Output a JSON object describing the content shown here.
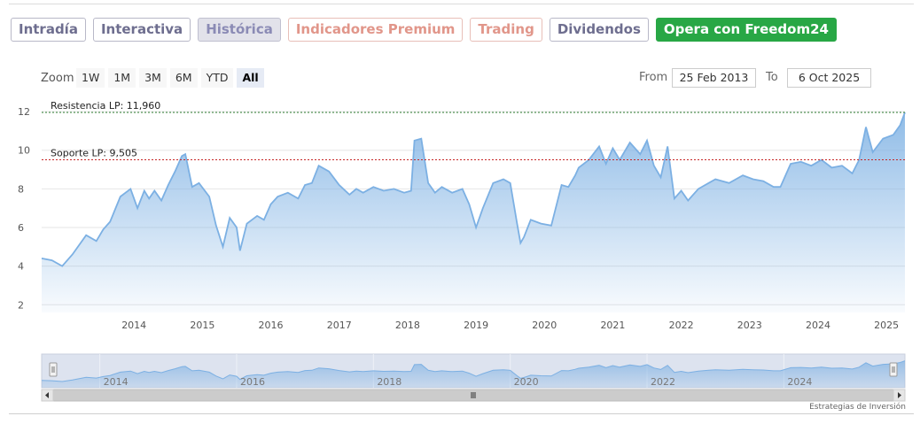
{
  "tabs": [
    {
      "label": "Intradía",
      "style": "default"
    },
    {
      "label": "Interactiva",
      "style": "default"
    },
    {
      "label": "Histórica",
      "style": "active"
    },
    {
      "label": "Indicadores Premium",
      "style": "orange"
    },
    {
      "label": "Trading",
      "style": "orange"
    },
    {
      "label": "Dividendos",
      "style": "default"
    },
    {
      "label": "Opera con Freedom24",
      "style": "green"
    }
  ],
  "zoom": {
    "label": "Zoom",
    "options": [
      "1W",
      "1M",
      "3M",
      "6M",
      "YTD",
      "All"
    ],
    "selected": "All"
  },
  "range": {
    "from_label": "From",
    "from_value": "25 Feb 2013",
    "to_label": "To",
    "to_value": "6 Oct 2025"
  },
  "credit": "Estrategias de Inversión",
  "colors": {
    "line": "#7cb0e3",
    "resistance": "#2e7d32",
    "support": "#c62828"
  },
  "chart_data": {
    "type": "area",
    "title": "",
    "xlabel": "",
    "ylabel": "",
    "x_range": [
      2013.15,
      2025.77
    ],
    "ylim": [
      1.6,
      12.6
    ],
    "yticks": [
      2,
      4,
      6,
      8,
      10,
      12
    ],
    "xticks": [
      2014,
      2015,
      2016,
      2017,
      2018,
      2019,
      2020,
      2021,
      2022,
      2023,
      2024,
      2025
    ],
    "grid": true,
    "series": [
      {
        "x": [
          2013.15,
          2013.3,
          2013.45,
          2013.6,
          2013.8,
          2013.95,
          2014.05,
          2014.15,
          2014.3,
          2014.45,
          2014.55,
          2014.65,
          2014.72,
          2014.8,
          2014.9,
          2015.0,
          2015.1,
          2015.2,
          2015.25,
          2015.35,
          2015.45,
          2015.6,
          2015.7,
          2015.8,
          2015.9,
          2016.0,
          2016.05,
          2016.15,
          2016.3,
          2016.4,
          2016.5,
          2016.6,
          2016.75,
          2016.9,
          2017.0,
          2017.1,
          2017.2,
          2017.35,
          2017.5,
          2017.65,
          2017.75,
          2017.85,
          2018.0,
          2018.15,
          2018.3,
          2018.45,
          2018.55,
          2018.6,
          2018.7,
          2018.8,
          2018.9,
          2019.0,
          2019.15,
          2019.3,
          2019.4,
          2019.5,
          2019.6,
          2019.75,
          2019.9,
          2020.0,
          2020.1,
          2020.15,
          2020.2,
          2020.3,
          2020.45,
          2020.6,
          2020.75,
          2020.85,
          2020.95,
          2021.0,
          2021.15,
          2021.3,
          2021.4,
          2021.5,
          2021.6,
          2021.75,
          2021.9,
          2022.0,
          2022.1,
          2022.2,
          2022.3,
          2022.4,
          2022.5,
          2022.6,
          2022.75,
          2022.9,
          2023.0,
          2023.2,
          2023.4,
          2023.55,
          2023.7,
          2023.85,
          2023.95,
          2024.1,
          2024.25,
          2024.4,
          2024.55,
          2024.7,
          2024.85,
          2025.0,
          2025.1,
          2025.2,
          2025.3,
          2025.45,
          2025.6,
          2025.7,
          2025.77
        ],
        "y": [
          4.4,
          4.3,
          4.0,
          4.6,
          5.6,
          5.3,
          5.9,
          6.3,
          7.6,
          8.0,
          7.0,
          7.9,
          7.5,
          7.9,
          7.4,
          8.2,
          8.9,
          9.7,
          9.8,
          8.1,
          8.3,
          7.6,
          6.1,
          5.0,
          6.5,
          6.0,
          4.8,
          6.2,
          6.6,
          6.4,
          7.2,
          7.6,
          7.8,
          7.5,
          8.2,
          8.3,
          9.2,
          8.9,
          8.2,
          7.7,
          8.0,
          7.8,
          8.1,
          7.9,
          8.0,
          7.8,
          7.9,
          10.5,
          10.6,
          8.3,
          7.8,
          8.1,
          7.8,
          8.0,
          7.2,
          6.0,
          7.0,
          8.3,
          8.5,
          8.3,
          6.2,
          5.2,
          5.5,
          6.4,
          6.2,
          6.1,
          8.2,
          8.1,
          8.7,
          9.1,
          9.5,
          10.2,
          9.3,
          10.1,
          9.5,
          10.4,
          9.8,
          10.5,
          9.2,
          8.6,
          10.2,
          7.5,
          7.9,
          7.4,
          8.0,
          8.3,
          8.5,
          8.3,
          8.7,
          8.5,
          8.4,
          8.1,
          8.1,
          9.3,
          9.4,
          9.2,
          9.5,
          9.1,
          9.2,
          8.8,
          9.5,
          11.2,
          9.9,
          10.6,
          10.8,
          11.3,
          11.96
        ]
      }
    ],
    "annotations": [
      {
        "label": "Resistencia LP: 11,960",
        "value": 11.96,
        "kind": "resistance"
      },
      {
        "label": "Soporte LP: 9,505",
        "value": 9.505,
        "kind": "support"
      }
    ],
    "navigator": {
      "xticks": [
        2014,
        2016,
        2018,
        2020,
        2022,
        2024
      ]
    }
  }
}
